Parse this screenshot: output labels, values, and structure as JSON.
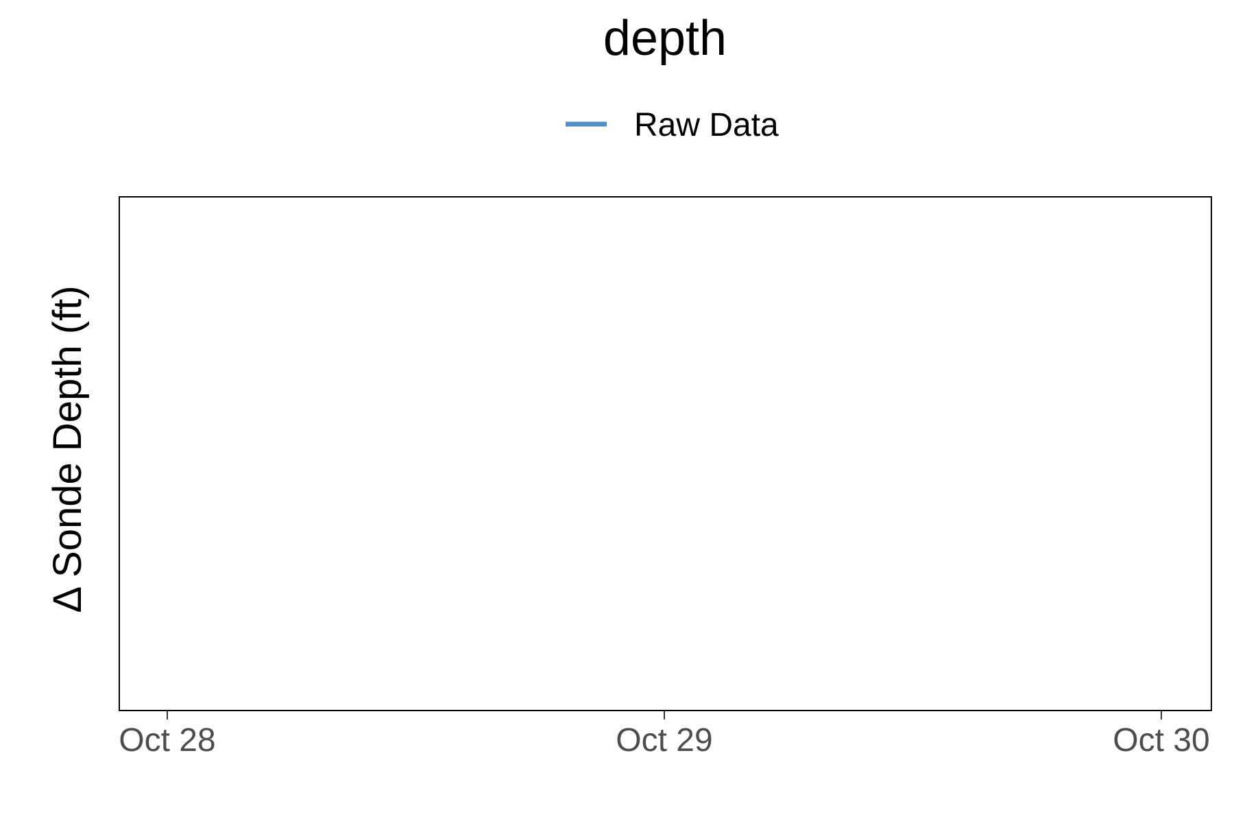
{
  "chart_data": {
    "type": "line",
    "title": "depth",
    "xlabel": "",
    "ylabel": "Δ Sonde Depth (ft)",
    "x_type": "date",
    "x_ticks": [
      "Oct 28",
      "Oct 29",
      "Oct 30"
    ],
    "series": [
      {
        "name": "Raw Data",
        "color": "#4f90c9",
        "points": []
      }
    ],
    "legend": "top-center",
    "grid": false
  }
}
